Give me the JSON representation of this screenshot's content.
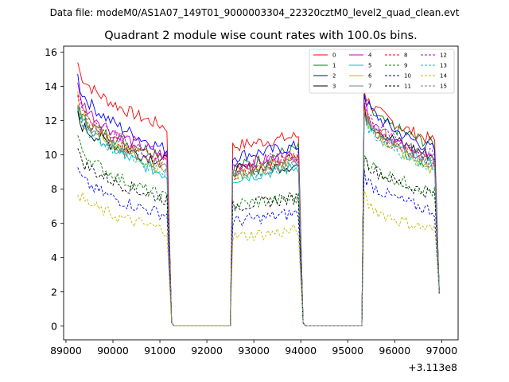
{
  "suptitle": "Data file: modeM0/AS1A07_149T01_9000003304_22320cztM0_level2_quad_clean.evt",
  "chart_data": {
    "type": "line",
    "title": "Quadrant 2 module wise count rates with 100.0s bins.",
    "xlabel": "",
    "ylabel": "",
    "x_offset_label": "+3.113e8",
    "xlim": [
      88950,
      97350
    ],
    "ylim": [
      -0.8,
      16.35
    ],
    "x_ticks": [
      89000,
      90000,
      91000,
      92000,
      93000,
      94000,
      95000,
      96000,
      97000
    ],
    "y_ticks": [
      0,
      2,
      4,
      6,
      8,
      10,
      12,
      14,
      16
    ],
    "grid": false,
    "legend_position": "top-right",
    "legend_columns": 4,
    "segments": [
      {
        "start": 89250,
        "end": 91150,
        "gap_end": 91250,
        "gap_value": 0.2
      },
      {
        "start": 92550,
        "end": 93950,
        "gap_end": 94050,
        "gap_value": 0.2
      },
      {
        "start": 95350,
        "end": 96850,
        "gap_end": 96950,
        "gap_value": 1.9
      }
    ],
    "series": [
      {
        "name": "0",
        "color": "#ff0000",
        "dashed": false,
        "levels": [
          15.4,
          11.6,
          10.5,
          11.1,
          13.9,
          10.8
        ]
      },
      {
        "name": "1",
        "color": "#008000",
        "dashed": false,
        "levels": [
          12.8,
          10.0,
          9.2,
          10.4,
          13.4,
          10.6
        ]
      },
      {
        "name": "2",
        "color": "#0000ff",
        "dashed": false,
        "levels": [
          14.6,
          10.3,
          9.9,
          10.5,
          13.7,
          10.3
        ]
      },
      {
        "name": "3",
        "color": "#000000",
        "dashed": false,
        "levels": [
          12.3,
          9.6,
          9.1,
          9.4,
          12.7,
          9.9
        ]
      },
      {
        "name": "4",
        "color": "#bf00bf",
        "dashed": false,
        "levels": [
          14.0,
          9.9,
          9.4,
          10.0,
          13.2,
          9.6
        ]
      },
      {
        "name": "5",
        "color": "#00bfbf",
        "dashed": false,
        "levels": [
          13.1,
          8.8,
          8.6,
          9.3,
          12.6,
          9.4
        ]
      },
      {
        "name": "6",
        "color": "#bfbf00",
        "dashed": false,
        "levels": [
          13.5,
          9.1,
          8.8,
          9.7,
          12.9,
          9.1
        ]
      },
      {
        "name": "7",
        "color": "#808080",
        "dashed": false,
        "levels": [
          13.0,
          9.3,
          9.0,
          9.6,
          12.7,
          9.8
        ]
      },
      {
        "name": "8",
        "color": "#ff0000",
        "dashed": true,
        "levels": [
          13.3,
          9.5,
          8.9,
          9.9,
          12.8,
          9.4
        ]
      },
      {
        "name": "9",
        "color": "#008000",
        "dashed": true,
        "levels": [
          11.1,
          7.5,
          7.1,
          7.5,
          10.2,
          7.8
        ]
      },
      {
        "name": "10",
        "color": "#0000ff",
        "dashed": true,
        "levels": [
          9.2,
          6.5,
          6.1,
          6.6,
          9.0,
          6.7
        ]
      },
      {
        "name": "11",
        "color": "#000000",
        "dashed": true,
        "levels": [
          10.3,
          7.4,
          7.0,
          7.5,
          10.0,
          7.7
        ]
      },
      {
        "name": "12",
        "color": "#bf00bf",
        "dashed": true,
        "levels": [
          13.6,
          9.7,
          9.2,
          10.1,
          13.1,
          9.9
        ]
      },
      {
        "name": "13",
        "color": "#00bfbf",
        "dashed": true,
        "levels": [
          12.6,
          9.0,
          8.7,
          9.4,
          12.4,
          9.3
        ]
      },
      {
        "name": "14",
        "color": "#bfbf00",
        "dashed": true,
        "levels": [
          8.0,
          5.6,
          5.2,
          5.6,
          7.6,
          5.6
        ]
      },
      {
        "name": "15",
        "color": "#808080",
        "dashed": true,
        "levels": [
          12.9,
          9.2,
          8.8,
          9.5,
          12.5,
          9.4
        ]
      }
    ]
  }
}
